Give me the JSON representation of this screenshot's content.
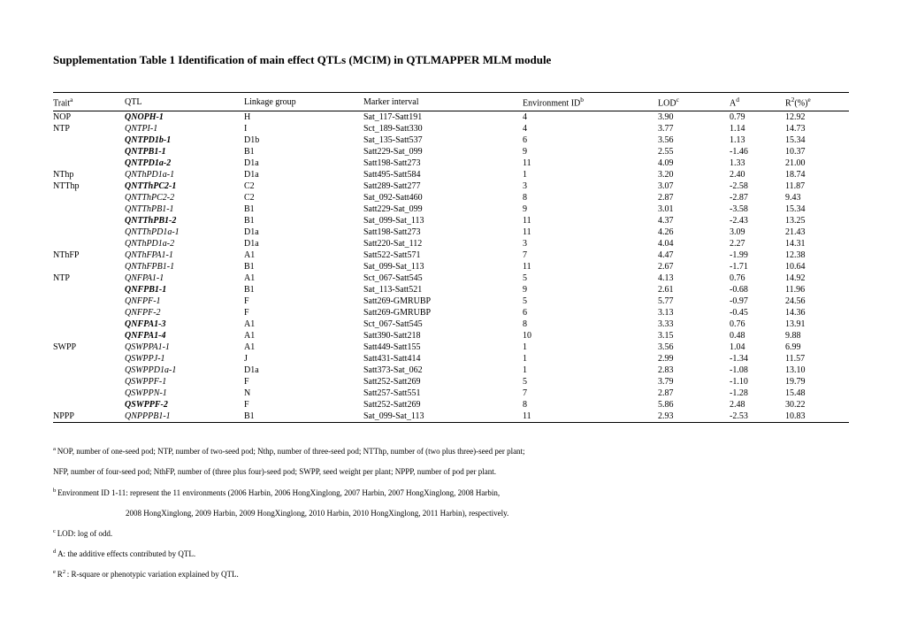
{
  "title": "Supplementation Table 1 Identification of main effect QTLs (MCIM) in QTLMAPPER MLM module",
  "headers": {
    "trait": "Trait",
    "trait_sup": "a",
    "qtl": "QTL",
    "lg": "Linkage group",
    "marker": "Marker interval",
    "env": "Environment ID",
    "env_sup": "b",
    "lod": "LOD",
    "lod_sup": "c",
    "a": "A",
    "a_sup": "d",
    "r2": "R",
    "r2_exp": "2",
    "r2_unit": "(%)",
    "r2_sup": "e"
  },
  "rows": [
    {
      "trait": "NOP",
      "qtl": "QNOPH-1",
      "style": "bolditalic",
      "lg": "H",
      "marker": "Sat_117-Satt191",
      "env": "4",
      "lod": "3.90",
      "a": "0.79",
      "r2": "12.92"
    },
    {
      "trait": "NTP",
      "qtl": "QNTPI-1",
      "style": "italic",
      "lg": "I",
      "marker": "Sct_189-Satt330",
      "env": "4",
      "lod": "3.77",
      "a": "1.14",
      "r2": "14.73"
    },
    {
      "trait": "",
      "qtl": "QNTPD1b-1",
      "style": "bolditalic",
      "lg": "D1b",
      "marker": "Sat_135-Satt537",
      "env": "6",
      "lod": "3.56",
      "a": "1.13",
      "r2": "15.34"
    },
    {
      "trait": "",
      "qtl": "QNTPB1-1",
      "style": "bolditalic",
      "lg": "B1",
      "marker": "Satt229-Sat_099",
      "env": "9",
      "lod": "2.55",
      "a": "-1.46",
      "r2": "10.37"
    },
    {
      "trait": "",
      "qtl": "QNTPD1a-2",
      "style": "bolditalic",
      "lg": "D1a",
      "marker": "Satt198-Satt273",
      "env": "11",
      "lod": "4.09",
      "a": "1.33",
      "r2": "21.00"
    },
    {
      "trait": "NThp",
      "qtl": "QNThPD1a-1",
      "style": "italic",
      "lg": "D1a",
      "marker": "Satt495-Satt584",
      "env": "1",
      "lod": "3.20",
      "a": "2.40",
      "r2": "18.74"
    },
    {
      "trait": "NTThp",
      "qtl": "QNTThPC2-1",
      "style": "bolditalic",
      "lg": "C2",
      "marker": "Satt289-Satt277",
      "env": "3",
      "lod": "3.07",
      "a": "-2.58",
      "r2": "11.87"
    },
    {
      "trait": "",
      "qtl": "QNTThPC2-2",
      "style": "italic",
      "lg": "C2",
      "marker": "Sat_092-Satt460",
      "env": "8",
      "lod": "2.87",
      "a": "-2.87",
      "r2": "9.43"
    },
    {
      "trait": "",
      "qtl": "QNTThPB1-1",
      "style": "italic",
      "lg": "B1",
      "marker": "Satt229-Sat_099",
      "env": "9",
      "lod": "3.01",
      "a": "-3.58",
      "r2": "15.34"
    },
    {
      "trait": "",
      "qtl": "QNTThPB1-2",
      "style": "bolditalic",
      "lg": "B1",
      "marker": "Sat_099-Sat_113",
      "env": "11",
      "lod": "4.37",
      "a": "-2.43",
      "r2": "13.25"
    },
    {
      "trait": "",
      "qtl": "QNTThPD1a-1",
      "style": "italic",
      "lg": "D1a",
      "marker": "Satt198-Satt273",
      "env": "11",
      "lod": "4.26",
      "a": "3.09",
      "r2": "21.43"
    },
    {
      "trait": "",
      "qtl": "QNThPD1a-2",
      "style": "italic",
      "lg": "D1a",
      "marker": "Satt220-Sat_112",
      "env": "3",
      "lod": "4.04",
      "a": "2.27",
      "r2": "14.31"
    },
    {
      "trait": "NThFP",
      "qtl": "QNThFPA1-1",
      "style": "italic",
      "lg": "A1",
      "marker": "Satt522-Satt571",
      "env": "7",
      "lod": "4.47",
      "a": "-1.99",
      "r2": "12.38"
    },
    {
      "trait": "",
      "qtl": "QNThFPB1-1",
      "style": "italic",
      "lg": "B1",
      "marker": "Sat_099-Sat_113",
      "env": "11",
      "lod": "2.67",
      "a": "-1.71",
      "r2": "10.64"
    },
    {
      "trait": "NTP",
      "qtl": "QNFPA1-1",
      "style": "italic",
      "lg": "A1",
      "marker": "Sct_067-Satt545",
      "env": "5",
      "lod": "4.13",
      "a": "0.76",
      "r2": "14.92"
    },
    {
      "trait": "",
      "qtl": "QNFPB1-1",
      "style": "bolditalic",
      "lg": "B1",
      "marker": "Sat_113-Satt521",
      "env": "9",
      "lod": "2.61",
      "a": "-0.68",
      "r2": "11.96"
    },
    {
      "trait": "",
      "qtl": "QNFPF-1",
      "style": "italic",
      "lg": "F",
      "marker": "Satt269-GMRUBP",
      "env": "5",
      "lod": "5.77",
      "a": "-0.97",
      "r2": "24.56"
    },
    {
      "trait": "",
      "qtl": "QNFPF-2",
      "style": "italic",
      "lg": "F",
      "marker": "Satt269-GMRUBP",
      "env": "6",
      "lod": "3.13",
      "a": "-0.45",
      "r2": "14.36"
    },
    {
      "trait": "",
      "qtl": "QNFPA1-3",
      "style": "bolditalic",
      "lg": "A1",
      "marker": "Sct_067-Satt545",
      "env": "8",
      "lod": "3.33",
      "a": "0.76",
      "r2": "13.91"
    },
    {
      "trait": "",
      "qtl": "QNFPA1-4",
      "style": "bolditalic",
      "lg": "A1",
      "marker": "Satt390-Satt218",
      "env": "10",
      "lod": "3.15",
      "a": "0.48",
      "r2": "9.88"
    },
    {
      "trait": "SWPP",
      "qtl": "QSWPPA1-1",
      "style": "italic",
      "lg": "A1",
      "marker": "Satt449-Satt155",
      "env": "1",
      "lod": "3.56",
      "a": "1.04",
      "r2": "6.99"
    },
    {
      "trait": "",
      "qtl": "QSWPPJ-1",
      "style": "italic",
      "lg": "J",
      "marker": "Satt431-Satt414",
      "env": "1",
      "lod": "2.99",
      "a": "-1.34",
      "r2": "11.57"
    },
    {
      "trait": "",
      "qtl": "QSWPPD1a-1",
      "style": "italic",
      "lg": "D1a",
      "marker": "Satt373-Sat_062",
      "env": "1",
      "lod": "2.83",
      "a": "-1.08",
      "r2": "13.10"
    },
    {
      "trait": "",
      "qtl": "QSWPPF-1",
      "style": "italic",
      "lg": "F",
      "marker": "Satt252-Satt269",
      "env": "5",
      "lod": "3.79",
      "a": "-1.10",
      "r2": "19.79"
    },
    {
      "trait": "",
      "qtl": "QSWPPN-1",
      "style": "italic",
      "lg": "N",
      "marker": "Satt257-Satt551",
      "env": "7",
      "lod": "2.87",
      "a": "-1.28",
      "r2": "15.48"
    },
    {
      "trait": "",
      "qtl": "QSWPPF-2",
      "style": "bolditalic",
      "lg": "F",
      "marker": "Satt252-Satt269",
      "env": "8",
      "lod": "5.86",
      "a": "2.48",
      "r2": "30.22"
    },
    {
      "trait": "NPPP",
      "qtl": "QNPPPB1-1",
      "style": "italic",
      "lg": "B1",
      "marker": "Sat_099-Sat_113",
      "env": "11",
      "lod": "2.93",
      "a": "-2.53",
      "r2": "10.83"
    }
  ],
  "footnotes": {
    "a1": "NOP, number of one-seed pod; NTP, number of two-seed pod; Nthp, number of three-seed pod; NTThp, number of (two plus three)-seed per plant;",
    "a2": "NFP, number of four-seed pod; NthFP, number of (three plus four)-seed pod; SWPP, seed weight per plant; NPPP, number of pod per plant.",
    "b1": "Environment ID 1-11: represent the 11 environments (2006 Harbin, 2006 HongXinglong, 2007 Harbin, 2007 HongXinglong, 2008 Harbin,",
    "b2": "2008 HongXinglong, 2009 Harbin, 2009 HongXinglong, 2010 Harbin, 2010 HongXinglong, 2011 Harbin), respectively.",
    "c": "LOD: log of odd.",
    "d": "A: the additive effects contributed by QTL.",
    "e": ": R-square or phenotypic variation explained by QTL.",
    "sup_a": "a ",
    "sup_b": "b ",
    "sup_c": "c ",
    "sup_d": "d ",
    "sup_e_prefix": "e ",
    "sup_e_r": "R",
    "sup_e_2": "2 "
  }
}
